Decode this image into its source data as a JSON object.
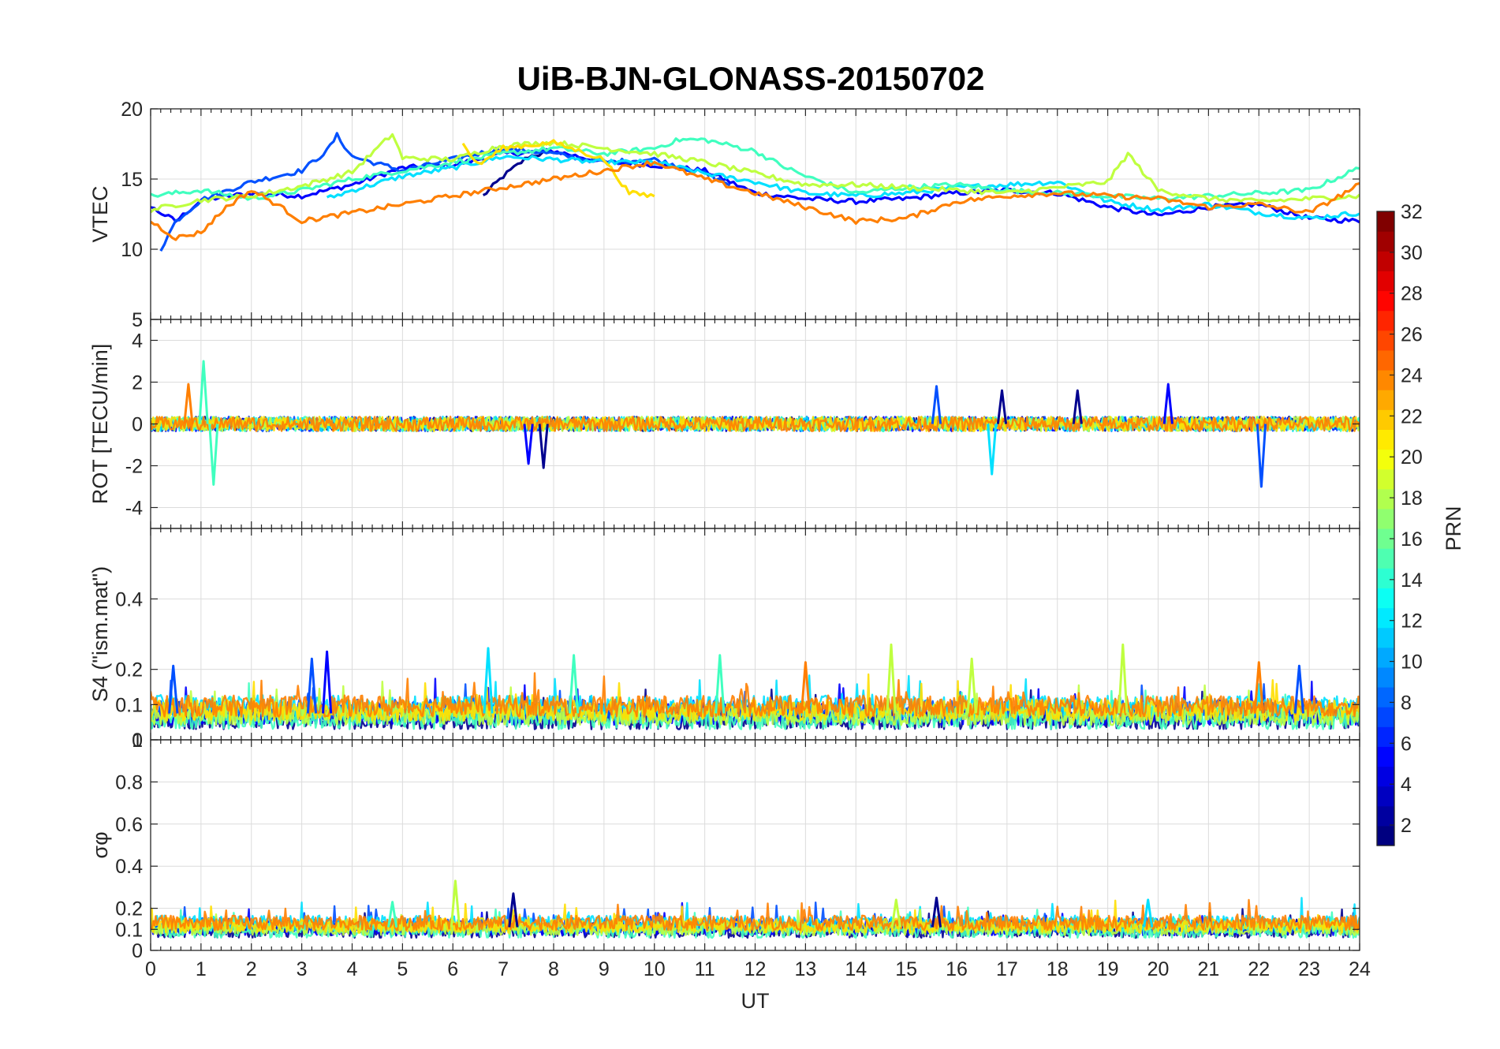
{
  "figure": {
    "title": "UiB-BJN-GLONASS-20150702"
  },
  "colorbar": {
    "label": "PRN",
    "range": [
      1,
      32
    ],
    "ticks": [
      "2",
      "4",
      "6",
      "8",
      "10",
      "12",
      "14",
      "16",
      "18",
      "20",
      "22",
      "24",
      "26",
      "28",
      "30",
      "32"
    ],
    "colormap": "jet"
  },
  "chart_data": [
    {
      "type": "line",
      "panel": "VTEC",
      "ylabel": "VTEC",
      "ylim": [
        5,
        20
      ],
      "yticks": [
        "5",
        "10",
        "15",
        "20"
      ],
      "xlim": [
        0,
        24
      ],
      "grid": true,
      "series": [
        {
          "prn": 1,
          "color": "#00008f",
          "x": [
            6.6,
            7.0,
            7.5,
            8.0
          ],
          "values": [
            13.8,
            15.2,
            16.6,
            17.0
          ]
        },
        {
          "prn": 4,
          "color": "#0000ff",
          "x": [
            0.0,
            0.5,
            1.0,
            2.0,
            3.0,
            4.0,
            5.0,
            6.0,
            7.0,
            8.0,
            9.0,
            10.0,
            11.0,
            12.0,
            13.0,
            14.0,
            15.0,
            16.0,
            17.0,
            18.0,
            19.0,
            20.0,
            21.0,
            22.0,
            23.0,
            24.0
          ],
          "values": [
            13.0,
            12.0,
            13.5,
            14.0,
            13.8,
            14.6,
            15.8,
            16.0,
            16.8,
            17.0,
            16.2,
            16.0,
            15.6,
            14.0,
            13.6,
            13.4,
            13.6,
            14.0,
            14.2,
            14.0,
            13.0,
            12.4,
            13.0,
            13.2,
            12.2,
            12.0
          ]
        },
        {
          "prn": 7,
          "color": "#0050ff",
          "x": [
            0.2,
            0.5,
            1.0,
            2.0,
            3.0,
            3.5,
            3.7,
            4.0,
            5.0,
            6.0,
            7.0,
            8.0,
            9.0,
            10.0,
            11.0,
            11.5
          ],
          "values": [
            10.0,
            12.0,
            13.5,
            14.8,
            15.6,
            17.0,
            18.1,
            16.6,
            15.6,
            16.4,
            17.2,
            16.8,
            16.2,
            16.4,
            15.4,
            14.6
          ]
        },
        {
          "prn": 12,
          "color": "#00e0ff",
          "x": [
            3.5,
            4.0,
            5.0,
            6.0,
            7.0,
            8.0,
            9.0,
            10.0,
            11.0,
            12.0,
            13.0,
            14.0,
            15.0,
            16.0,
            17.0,
            18.0,
            19.0,
            20.0,
            21.0,
            22.0,
            23.0,
            24.0
          ],
          "values": [
            13.6,
            14.2,
            15.2,
            15.8,
            16.6,
            16.4,
            16.2,
            16.2,
            15.4,
            14.8,
            14.0,
            13.8,
            14.0,
            14.4,
            14.6,
            14.8,
            13.4,
            12.8,
            13.2,
            12.6,
            12.2,
            12.6
          ]
        },
        {
          "prn": 15,
          "color": "#40ffbf",
          "x": [
            0.0,
            1.0,
            2.0,
            3.0,
            4.0,
            5.0,
            6.0,
            7.0,
            8.0,
            9.0,
            10.0,
            10.5,
            11.0,
            12.0,
            12.5,
            13.0,
            14.0,
            15.0,
            16.0,
            17.0,
            18.0,
            19.0,
            20.0,
            21.0,
            22.0,
            23.0,
            24.0
          ],
          "values": [
            13.8,
            14.2,
            13.6,
            14.2,
            15.0,
            15.6,
            16.2,
            16.8,
            17.2,
            16.8,
            17.2,
            17.8,
            17.8,
            17.0,
            16.0,
            15.2,
            14.0,
            14.4,
            14.6,
            14.2,
            14.0,
            13.8,
            13.6,
            13.8,
            14.0,
            14.2,
            15.8
          ]
        },
        {
          "prn": 18,
          "color": "#bfff40",
          "x": [
            0.0,
            1.0,
            2.0,
            3.0,
            4.0,
            4.8,
            5.0,
            6.0,
            7.0,
            8.0,
            9.0,
            10.0,
            11.0,
            12.0,
            13.0,
            14.0,
            15.0,
            16.0,
            17.0,
            18.0,
            19.0,
            19.4,
            20.0,
            21.0,
            22.0,
            23.0,
            24.0
          ],
          "values": [
            12.8,
            13.5,
            13.8,
            14.5,
            15.5,
            18.2,
            16.5,
            16.4,
            17.4,
            17.6,
            17.2,
            16.8,
            16.2,
            15.4,
            14.6,
            14.6,
            14.4,
            14.2,
            14.0,
            14.4,
            14.8,
            16.8,
            14.2,
            13.6,
            13.4,
            13.6,
            13.8
          ]
        },
        {
          "prn": 21,
          "color": "#ffdf00",
          "x": [
            6.2,
            6.5,
            7.0,
            8.0,
            9.0,
            9.5,
            10.0
          ],
          "values": [
            17.5,
            16.0,
            17.2,
            17.6,
            16.4,
            14.0,
            13.8
          ]
        },
        {
          "prn": 24,
          "color": "#ff7f00",
          "x": [
            0.0,
            0.5,
            1.0,
            1.5,
            2.0,
            2.5,
            3.0,
            10.0,
            11.0,
            12.0,
            13.0,
            14.0,
            15.0,
            16.0,
            17.0,
            18.0,
            19.0,
            20.0,
            21.0,
            22.0,
            23.0,
            24.0
          ],
          "values": [
            12.0,
            10.8,
            11.2,
            13.0,
            14.2,
            13.2,
            12.0,
            16.2,
            15.0,
            14.0,
            13.0,
            12.0,
            12.2,
            13.4,
            13.8,
            14.0,
            13.8,
            13.6,
            13.0,
            13.2,
            12.6,
            14.6
          ]
        }
      ]
    },
    {
      "type": "line",
      "panel": "ROT",
      "ylabel": "ROT [TECU/min]",
      "ylim": [
        -5,
        5
      ],
      "yticks": [
        "-4",
        "-2",
        "0",
        "2",
        "4"
      ],
      "xlim": [
        0,
        24
      ],
      "grid": true,
      "note": "all PRNs scatter near 0 with spikes",
      "spikes": [
        {
          "x": 1.05,
          "value": 3.0,
          "prn": 15
        },
        {
          "x": 1.25,
          "value": -2.9,
          "prn": 15
        },
        {
          "x": 0.75,
          "value": 1.9,
          "prn": 24
        },
        {
          "x": 7.5,
          "value": -1.9,
          "prn": 4
        },
        {
          "x": 7.8,
          "value": -2.1,
          "prn": 1
        },
        {
          "x": 15.6,
          "value": 1.8,
          "prn": 7
        },
        {
          "x": 16.7,
          "value": -2.4,
          "prn": 12
        },
        {
          "x": 16.9,
          "value": 1.6,
          "prn": 1
        },
        {
          "x": 18.4,
          "value": 1.6,
          "prn": 1
        },
        {
          "x": 20.2,
          "value": 1.9,
          "prn": 4
        },
        {
          "x": 22.05,
          "value": -3.0,
          "prn": 7
        }
      ]
    },
    {
      "type": "line",
      "panel": "S4",
      "ylabel": "S4 (\"ism.mat\")",
      "ylim": [
        0,
        0.6
      ],
      "yticks": [
        "0",
        "0.1",
        "0.2",
        "0.4"
      ],
      "xlim": [
        0,
        24
      ],
      "grid": true,
      "note": "background ~0.05-0.12 with peaks",
      "peaks": [
        {
          "x": 0.45,
          "value": 0.21,
          "prn": 7
        },
        {
          "x": 3.2,
          "value": 0.23,
          "prn": 7
        },
        {
          "x": 3.5,
          "value": 0.25,
          "prn": 4
        },
        {
          "x": 6.7,
          "value": 0.26,
          "prn": 12
        },
        {
          "x": 8.4,
          "value": 0.24,
          "prn": 15
        },
        {
          "x": 11.3,
          "value": 0.24,
          "prn": 15
        },
        {
          "x": 13.0,
          "value": 0.22,
          "prn": 24
        },
        {
          "x": 14.7,
          "value": 0.27,
          "prn": 18
        },
        {
          "x": 16.3,
          "value": 0.23,
          "prn": 18
        },
        {
          "x": 19.3,
          "value": 0.27,
          "prn": 18
        },
        {
          "x": 22.0,
          "value": 0.22,
          "prn": 24
        },
        {
          "x": 22.8,
          "value": 0.21,
          "prn": 7
        }
      ]
    },
    {
      "type": "line",
      "panel": "sigma_phi",
      "ylabel": "σφ",
      "ylim": [
        0,
        1
      ],
      "yticks": [
        "0",
        "0.1",
        "0.2",
        "0.4",
        "0.6",
        "0.8",
        "1"
      ],
      "xlim": [
        0,
        24
      ],
      "xlabel": "UT",
      "xticks": [
        "0",
        "1",
        "2",
        "3",
        "4",
        "5",
        "6",
        "7",
        "8",
        "9",
        "10",
        "11",
        "12",
        "13",
        "14",
        "15",
        "16",
        "17",
        "18",
        "19",
        "20",
        "21",
        "22",
        "23",
        "24"
      ],
      "grid": true,
      "note": "background ~0.07-0.2",
      "peaks": [
        {
          "x": 6.05,
          "value": 0.33,
          "prn": 18
        },
        {
          "x": 7.2,
          "value": 0.27,
          "prn": 1
        },
        {
          "x": 4.8,
          "value": 0.23,
          "prn": 15
        },
        {
          "x": 14.8,
          "value": 0.24,
          "prn": 18
        },
        {
          "x": 15.6,
          "value": 0.25,
          "prn": 1
        },
        {
          "x": 19.8,
          "value": 0.24,
          "prn": 12
        }
      ]
    }
  ]
}
